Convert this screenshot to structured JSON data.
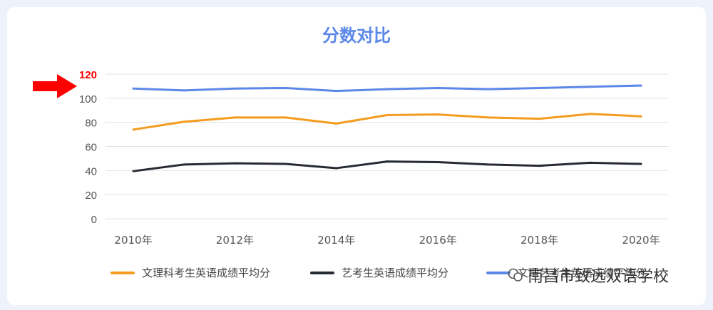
{
  "title": "分数对比",
  "highlight_tick": "120",
  "colors": {
    "title": "#5b87e8",
    "arrow": "#ff0000",
    "grid": "#e3e3e3",
    "axis_text": "#555555"
  },
  "chart_data": {
    "type": "line",
    "x": [
      2010,
      2011,
      2012,
      2013,
      2014,
      2015,
      2016,
      2017,
      2018,
      2019,
      2020
    ],
    "x_tick_labels": [
      "2010年",
      "2012年",
      "2014年",
      "2016年",
      "2018年",
      "2020年"
    ],
    "y_ticks": [
      "0",
      "20",
      "40",
      "60",
      "80",
      "100",
      "120"
    ],
    "ylim": [
      0,
      120
    ],
    "grid": true,
    "legend_position": "bottom",
    "series": [
      {
        "name": "文理科考生英语成绩平均分",
        "color": "#f39c1f",
        "values": [
          74,
          80.5,
          84,
          84,
          79,
          86,
          86.5,
          84,
          83,
          87,
          85
        ]
      },
      {
        "name": "艺考生英语成绩平均分",
        "color": "#262b33",
        "values": [
          39.5,
          45,
          46,
          45.5,
          42,
          47.5,
          47,
          45,
          44,
          46.5,
          45.5
        ]
      },
      {
        "name": "文理艺考生英语成绩平均分",
        "color": "#5b87e8",
        "values": [
          108,
          106.5,
          108,
          108.5,
          106,
          107.5,
          108.5,
          107.5,
          108.5,
          109.5,
          110.5
        ]
      }
    ]
  },
  "watermark": {
    "text": "南昌市致远双语学校",
    "icon": "wechat-icon"
  }
}
